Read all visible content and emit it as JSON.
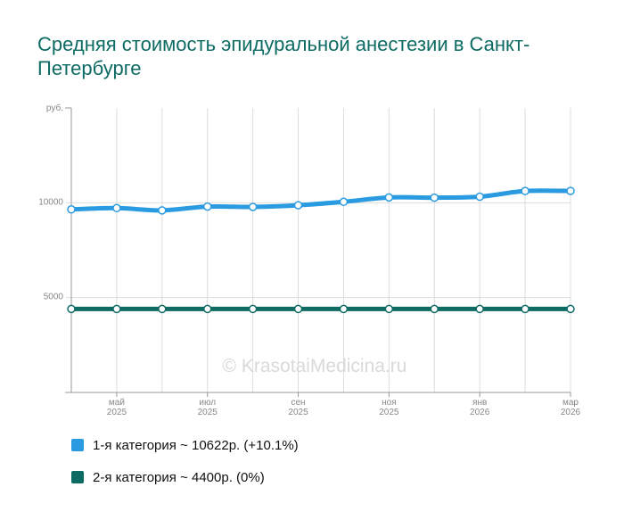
{
  "chart_data": {
    "type": "line",
    "title": "Средняя стоимость эпидуральной анестезии в Санкт-Петербурге",
    "ylabel": "руб.",
    "ylim": [
      0,
      15000
    ],
    "yticks": [
      {
        "value": 10000,
        "label": "10000"
      },
      {
        "value": 5000,
        "label": "5000"
      }
    ],
    "x_range": [
      0,
      11
    ],
    "x_ticks": [
      {
        "x": 1,
        "month": "май",
        "year": "2025"
      },
      {
        "x": 3,
        "month": "июл",
        "year": "2025"
      },
      {
        "x": 5,
        "month": "сен",
        "year": "2025"
      },
      {
        "x": 7,
        "month": "ноя",
        "year": "2025"
      },
      {
        "x": 9,
        "month": "янв",
        "year": "2026"
      },
      {
        "x": 11,
        "month": "мар",
        "year": "2026"
      }
    ],
    "x": [
      0,
      1,
      2,
      3,
      4,
      5,
      6,
      7,
      8,
      9,
      10,
      11
    ],
    "series": [
      {
        "name": "1-я категория",
        "color": "#2a9be0",
        "values": [
          9650,
          9720,
          9600,
          9800,
          9780,
          9870,
          10050,
          10280,
          10270,
          10320,
          10620,
          10622
        ]
      },
      {
        "name": "2-я категория",
        "color": "#0d6b63",
        "values": [
          4400,
          4400,
          4400,
          4400,
          4400,
          4400,
          4400,
          4400,
          4400,
          4400,
          4400,
          4400
        ]
      }
    ],
    "legend": [
      {
        "text": "1-я категория ~ 10622р. (+10.1%)",
        "color": "#2a9be0"
      },
      {
        "text": "2-я категория ~ 4400р. (0%)",
        "color": "#0d6b63"
      }
    ],
    "watermark": "© KrasotaiMedicina.ru",
    "grid": true,
    "legend_position": "bottom-left"
  }
}
